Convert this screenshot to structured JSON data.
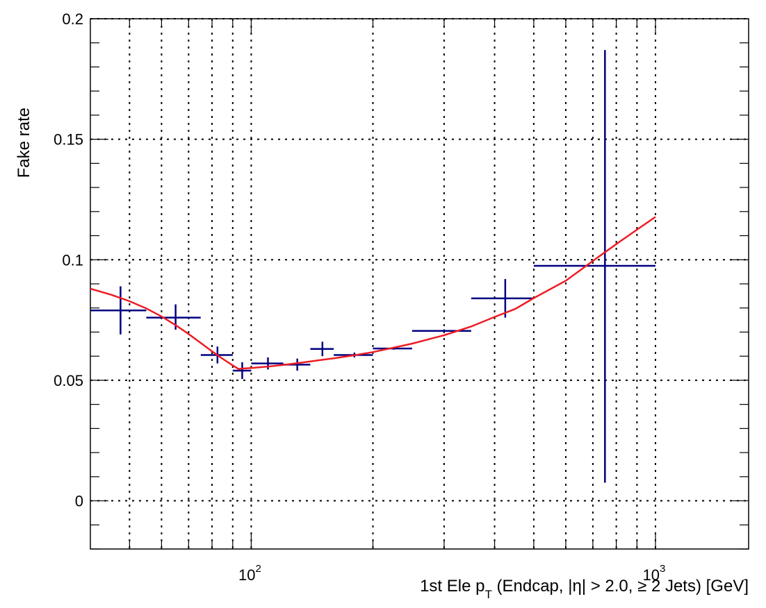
{
  "chart_data": {
    "type": "scatter",
    "title": "",
    "xlabel": {
      "prefix": "1st Ele p",
      "subscript": "T",
      "suffix": " (Endcap, |η| > 2.0, ≥ 2 Jets) [GeV]"
    },
    "ylabel": "Fake rate",
    "x_scale": "log",
    "xlim": [
      40,
      1700
    ],
    "ylim": [
      -0.02,
      0.2
    ],
    "grid": true,
    "legend": "none",
    "x_major_ticks": [
      {
        "value": 100,
        "base": "10",
        "exp": "2"
      },
      {
        "value": 1000,
        "base": "10",
        "exp": "3"
      }
    ],
    "x_minor_ticks": [
      50,
      60,
      70,
      80,
      90,
      200,
      300,
      400,
      500,
      600,
      700,
      800,
      900
    ],
    "y_ticks": [
      {
        "value": 0,
        "label": "0"
      },
      {
        "value": 0.05,
        "label": "0.05"
      },
      {
        "value": 0.1,
        "label": "0.1"
      },
      {
        "value": 0.15,
        "label": "0.15"
      },
      {
        "value": 0.2,
        "label": "0.2"
      }
    ],
    "series": [
      {
        "kind": "points",
        "color": "#000080",
        "points": [
          {
            "x": 47.5,
            "y": 0.079,
            "xlo": 40,
            "xhi": 55,
            "ylo": 0.069,
            "yhi": 0.089
          },
          {
            "x": 65,
            "y": 0.076,
            "xlo": 55,
            "xhi": 75,
            "ylo": 0.071,
            "yhi": 0.0815
          },
          {
            "x": 82.5,
            "y": 0.0605,
            "xlo": 75,
            "xhi": 90,
            "ylo": 0.057,
            "yhi": 0.064
          },
          {
            "x": 95,
            "y": 0.054,
            "xlo": 90,
            "xhi": 100,
            "ylo": 0.0505,
            "yhi": 0.0575
          },
          {
            "x": 110,
            "y": 0.057,
            "xlo": 100,
            "xhi": 120,
            "ylo": 0.0545,
            "yhi": 0.0595
          },
          {
            "x": 130,
            "y": 0.0565,
            "xlo": 120,
            "xhi": 140,
            "ylo": 0.054,
            "yhi": 0.059
          },
          {
            "x": 150,
            "y": 0.063,
            "xlo": 140,
            "xhi": 160,
            "ylo": 0.06,
            "yhi": 0.066
          },
          {
            "x": 180,
            "y": 0.0605,
            "xlo": 160,
            "xhi": 200,
            "ylo": 0.0595,
            "yhi": 0.0615
          },
          {
            "x": 225,
            "y": 0.0632,
            "xlo": 200,
            "xhi": 250,
            "ylo": 0.0627,
            "yhi": 0.0637
          },
          {
            "x": 300,
            "y": 0.0705,
            "xlo": 250,
            "xhi": 350,
            "ylo": 0.0699,
            "yhi": 0.0711
          },
          {
            "x": 425,
            "y": 0.084,
            "xlo": 350,
            "xhi": 500,
            "ylo": 0.076,
            "yhi": 0.092
          },
          {
            "x": 750,
            "y": 0.0975,
            "xlo": 500,
            "xhi": 1000,
            "ylo": 0.0075,
            "yhi": 0.187
          }
        ]
      },
      {
        "kind": "fit",
        "color": "#ee1c24",
        "x": [
          40,
          45,
          50,
          55,
          60,
          65,
          70,
          75,
          80,
          85,
          90,
          93,
          96,
          100,
          110,
          120,
          130,
          140,
          150,
          160,
          180,
          200,
          250,
          300,
          350,
          400,
          450,
          500,
          600,
          700,
          800,
          900,
          1000
        ],
        "y": [
          0.088,
          0.0855,
          0.0828,
          0.0798,
          0.0765,
          0.0729,
          0.0692,
          0.0655,
          0.062,
          0.0589,
          0.0562,
          0.0547,
          0.0549,
          0.0551,
          0.0557,
          0.0564,
          0.0571,
          0.0578,
          0.0585,
          0.0591,
          0.0604,
          0.0617,
          0.0652,
          0.0687,
          0.0723,
          0.0763,
          0.0796,
          0.0841,
          0.0913,
          0.0995,
          0.1065,
          0.1125,
          0.1178
        ]
      }
    ]
  }
}
